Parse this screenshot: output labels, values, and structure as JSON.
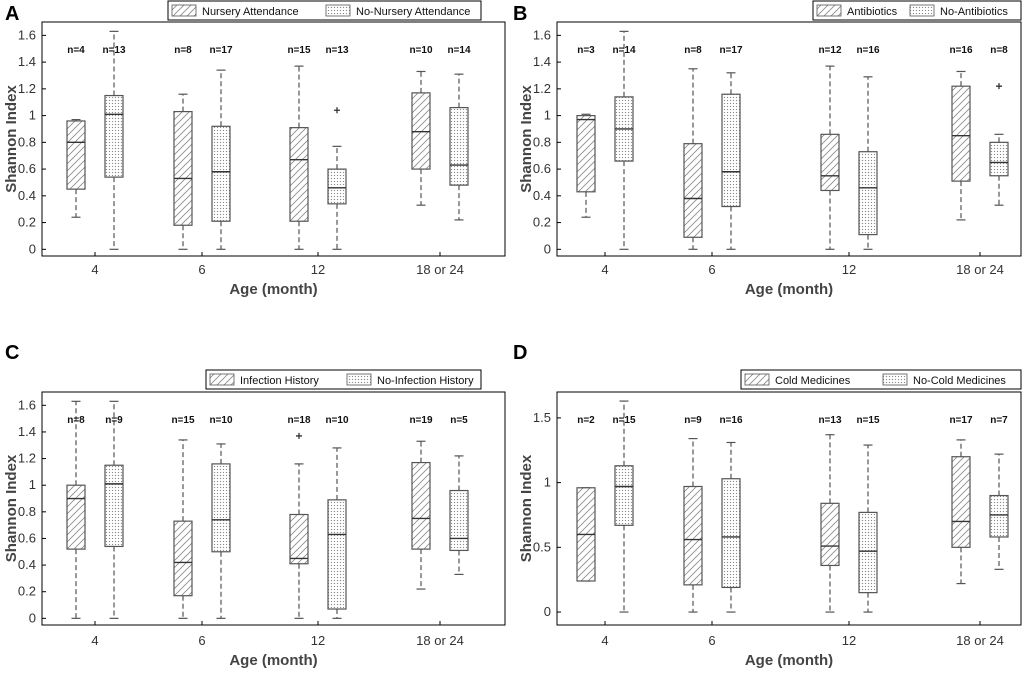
{
  "chart_data": [
    {
      "type": "box",
      "panel": "A",
      "ylabel": "Shannon Index",
      "xlabel": "Age (month)",
      "ylim": [
        -0.05,
        1.7
      ],
      "yticks": [
        0,
        0.2,
        0.4,
        0.6,
        0.8,
        1,
        1.2,
        1.4,
        1.6
      ],
      "ytick_labels": [
        "0",
        "0.2",
        "0.4",
        "0.6",
        "0.8",
        "1",
        "1.2",
        "1.4",
        "1.6"
      ],
      "categories": [
        "4",
        "6",
        "12",
        "18 or 24"
      ],
      "legend": [
        "Nursery Attendance",
        "No-Nursery Attendance"
      ],
      "series": [
        {
          "name": "Nursery Attendance",
          "pattern": "hatch",
          "n": [
            "n=4",
            "n=8",
            "n=15",
            "n=10"
          ],
          "boxes": [
            {
              "min": 0.24,
              "q1": 0.45,
              "median": 0.8,
              "q3": 0.96,
              "max": 0.97,
              "outliers": []
            },
            {
              "min": 0.0,
              "q1": 0.18,
              "median": 0.53,
              "q3": 1.03,
              "max": 1.16,
              "outliers": []
            },
            {
              "min": 0.0,
              "q1": 0.21,
              "median": 0.67,
              "q3": 0.91,
              "max": 1.37,
              "outliers": []
            },
            {
              "min": 0.33,
              "q1": 0.6,
              "median": 0.88,
              "q3": 1.17,
              "max": 1.33,
              "outliers": []
            }
          ]
        },
        {
          "name": "No-Nursery Attendance",
          "pattern": "dots",
          "n": [
            "n=13",
            "n=17",
            "n=13",
            "n=14"
          ],
          "boxes": [
            {
              "min": 0.0,
              "q1": 0.54,
              "median": 1.01,
              "q3": 1.15,
              "max": 1.63,
              "outliers": []
            },
            {
              "min": 0.0,
              "q1": 0.21,
              "median": 0.58,
              "q3": 0.92,
              "max": 1.34,
              "outliers": []
            },
            {
              "min": 0.0,
              "q1": 0.34,
              "median": 0.46,
              "q3": 0.6,
              "max": 0.77,
              "outliers": [
                1.04
              ]
            },
            {
              "min": 0.22,
              "q1": 0.48,
              "median": 0.63,
              "q3": 1.06,
              "max": 1.31,
              "outliers": []
            }
          ]
        }
      ]
    },
    {
      "type": "box",
      "panel": "B",
      "ylabel": "Shannon Index",
      "xlabel": "Age (month)",
      "ylim": [
        -0.05,
        1.7
      ],
      "yticks": [
        0,
        0.2,
        0.4,
        0.6,
        0.8,
        1,
        1.2,
        1.4,
        1.6
      ],
      "ytick_labels": [
        "0",
        "0.2",
        "0.4",
        "0.6",
        "0.8",
        "1",
        "1.2",
        "1.4",
        "1.6"
      ],
      "categories": [
        "4",
        "6",
        "12",
        "18 or 24"
      ],
      "legend": [
        "Antibiotics",
        "No-Antibiotics"
      ],
      "series": [
        {
          "name": "Antibiotics",
          "pattern": "hatch",
          "n": [
            "n=3",
            "n=8",
            "n=12",
            "n=16"
          ],
          "boxes": [
            {
              "min": 0.24,
              "q1": 0.43,
              "median": 0.97,
              "q3": 1.0,
              "max": 1.01,
              "outliers": []
            },
            {
              "min": 0.0,
              "q1": 0.09,
              "median": 0.38,
              "q3": 0.79,
              "max": 1.35,
              "outliers": []
            },
            {
              "min": 0.0,
              "q1": 0.44,
              "median": 0.55,
              "q3": 0.86,
              "max": 1.37,
              "outliers": []
            },
            {
              "min": 0.22,
              "q1": 0.51,
              "median": 0.85,
              "q3": 1.22,
              "max": 1.33,
              "outliers": []
            }
          ]
        },
        {
          "name": "No-Antibiotics",
          "pattern": "dots",
          "n": [
            "n=14",
            "n=17",
            "n=16",
            "n=8"
          ],
          "boxes": [
            {
              "min": 0.0,
              "q1": 0.66,
              "median": 0.9,
              "q3": 1.14,
              "max": 1.63,
              "outliers": []
            },
            {
              "min": 0.0,
              "q1": 0.32,
              "median": 0.58,
              "q3": 1.16,
              "max": 1.32,
              "outliers": []
            },
            {
              "min": 0.0,
              "q1": 0.11,
              "median": 0.46,
              "q3": 0.73,
              "max": 1.29,
              "outliers": []
            },
            {
              "min": 0.33,
              "q1": 0.55,
              "median": 0.65,
              "q3": 0.8,
              "max": 0.86,
              "outliers": [
                1.22
              ]
            }
          ]
        }
      ]
    },
    {
      "type": "box",
      "panel": "C",
      "ylabel": "Shannon Index",
      "xlabel": "Age (month)",
      "ylim": [
        -0.05,
        1.7
      ],
      "yticks": [
        0,
        0.2,
        0.4,
        0.6,
        0.8,
        1,
        1.2,
        1.4,
        1.6
      ],
      "ytick_labels": [
        "0",
        "0.2",
        "0.4",
        "0.6",
        "0.8",
        "1",
        "1.2",
        "1.4",
        "1.6"
      ],
      "categories": [
        "4",
        "6",
        "12",
        "18 or 24"
      ],
      "legend": [
        "Infection History",
        "No-Infection History"
      ],
      "series": [
        {
          "name": "Infection History",
          "pattern": "hatch",
          "n": [
            "n=8",
            "n=15",
            "n=18",
            "n=19"
          ],
          "boxes": [
            {
              "min": 0.0,
              "q1": 0.52,
              "median": 0.9,
              "q3": 1.0,
              "max": 1.63,
              "outliers": []
            },
            {
              "min": 0.0,
              "q1": 0.17,
              "median": 0.42,
              "q3": 0.73,
              "max": 1.34,
              "outliers": []
            },
            {
              "min": 0.0,
              "q1": 0.41,
              "median": 0.45,
              "q3": 0.78,
              "max": 1.16,
              "outliers": [
                1.37
              ]
            },
            {
              "min": 0.22,
              "q1": 0.52,
              "median": 0.75,
              "q3": 1.17,
              "max": 1.33,
              "outliers": []
            }
          ]
        },
        {
          "name": "No-Infection History",
          "pattern": "dots",
          "n": [
            "n=9",
            "n=10",
            "n=10",
            "n=5"
          ],
          "boxes": [
            {
              "min": 0.0,
              "q1": 0.54,
              "median": 1.01,
              "q3": 1.15,
              "max": 1.63,
              "outliers": []
            },
            {
              "min": 0.0,
              "q1": 0.5,
              "median": 0.74,
              "q3": 1.16,
              "max": 1.31,
              "outliers": []
            },
            {
              "min": 0.0,
              "q1": 0.07,
              "median": 0.63,
              "q3": 0.89,
              "max": 1.28,
              "outliers": []
            },
            {
              "min": 0.33,
              "q1": 0.51,
              "median": 0.6,
              "q3": 0.96,
              "max": 1.22,
              "outliers": []
            }
          ]
        }
      ]
    },
    {
      "type": "box",
      "panel": "D",
      "ylabel": "Shannon Index",
      "xlabel": "Age (month)",
      "ylim": [
        -0.1,
        1.7
      ],
      "yticks": [
        0,
        0.5,
        1,
        1.5
      ],
      "ytick_labels": [
        "0",
        "0.5",
        "1",
        "1.5"
      ],
      "categories": [
        "4",
        "6",
        "12",
        "18 or 24"
      ],
      "legend": [
        "Cold Medicines",
        "No-Cold Medicines"
      ],
      "series": [
        {
          "name": "Cold Medicines",
          "pattern": "hatch",
          "n": [
            "n=2",
            "n=9",
            "n=13",
            "n=17"
          ],
          "boxes": [
            {
              "min": 0.24,
              "q1": 0.24,
              "median": 0.6,
              "q3": 0.96,
              "max": 0.96,
              "outliers": []
            },
            {
              "min": 0.0,
              "q1": 0.21,
              "median": 0.56,
              "q3": 0.97,
              "max": 1.34,
              "outliers": []
            },
            {
              "min": 0.0,
              "q1": 0.36,
              "median": 0.51,
              "q3": 0.84,
              "max": 1.37,
              "outliers": []
            },
            {
              "min": 0.22,
              "q1": 0.5,
              "median": 0.7,
              "q3": 1.2,
              "max": 1.33,
              "outliers": []
            }
          ]
        },
        {
          "name": "No-Cold Medicines",
          "pattern": "dots",
          "n": [
            "n=15",
            "n=16",
            "n=15",
            "n=7"
          ],
          "boxes": [
            {
              "min": 0.0,
              "q1": 0.67,
              "median": 0.97,
              "q3": 1.13,
              "max": 1.63,
              "outliers": []
            },
            {
              "min": 0.0,
              "q1": 0.19,
              "median": 0.58,
              "q3": 1.03,
              "max": 1.31,
              "outliers": []
            },
            {
              "min": 0.0,
              "q1": 0.15,
              "median": 0.47,
              "q3": 0.77,
              "max": 1.29,
              "outliers": []
            },
            {
              "min": 0.33,
              "q1": 0.58,
              "median": 0.75,
              "q3": 0.9,
              "max": 1.22,
              "outliers": []
            }
          ]
        }
      ]
    }
  ]
}
